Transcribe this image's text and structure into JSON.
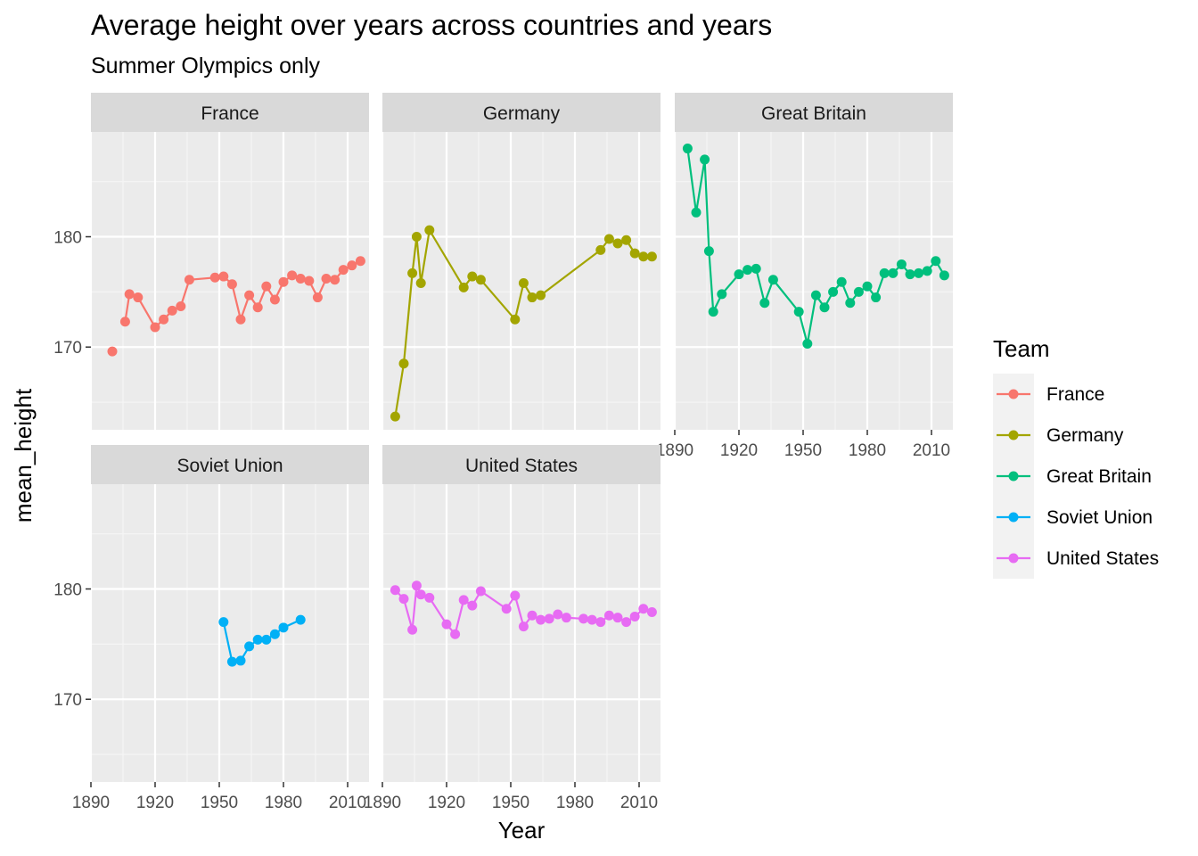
{
  "chart_data": {
    "type": "line",
    "title": "Average height over years across countries and years",
    "subtitle": "Summer Olympics only",
    "xlabel": "Year",
    "ylabel": "mean_height",
    "xlim": [
      1890,
      2020
    ],
    "ylim": [
      162.5,
      189.5
    ],
    "x_ticks": [
      1890,
      1920,
      1950,
      1980,
      2010
    ],
    "y_ticks": [
      170,
      180
    ],
    "grid": true,
    "legend": {
      "title": "Team",
      "position": "right"
    },
    "series": [
      {
        "name": "France",
        "color": "#F8766D",
        "x": [
          1900,
          1906,
          1908,
          1912,
          1920,
          1924,
          1928,
          1932,
          1936,
          1948,
          1952,
          1956,
          1960,
          1964,
          1968,
          1972,
          1976,
          1980,
          1984,
          1988,
          1992,
          1996,
          2000,
          2004,
          2008,
          2012,
          2016
        ],
        "y": [
          169.6,
          172.3,
          174.8,
          174.5,
          171.8,
          172.5,
          173.3,
          173.7,
          176.1,
          176.3,
          176.4,
          175.7,
          172.5,
          174.7,
          173.6,
          175.5,
          174.3,
          175.9,
          176.5,
          176.2,
          176.0,
          174.5,
          176.2,
          176.1,
          177.0,
          177.4,
          177.8
        ],
        "connected_from_index": 1
      },
      {
        "name": "Germany",
        "color": "#A3A500",
        "x": [
          1896,
          1900,
          1904,
          1906,
          1908,
          1912,
          1928,
          1932,
          1936,
          1952,
          1956,
          1960,
          1964,
          1992,
          1996,
          2000,
          2004,
          2008,
          2012,
          2016
        ],
        "y": [
          163.7,
          168.5,
          176.7,
          180.0,
          175.8,
          180.6,
          175.4,
          176.4,
          176.1,
          172.5,
          175.8,
          174.5,
          174.7,
          178.8,
          179.8,
          179.4,
          179.7,
          178.5,
          178.2,
          178.2
        ]
      },
      {
        "name": "Great Britain",
        "color": "#00BF7D",
        "x": [
          1896,
          1900,
          1904,
          1906,
          1908,
          1912,
          1920,
          1924,
          1928,
          1932,
          1936,
          1948,
          1952,
          1956,
          1960,
          1964,
          1968,
          1972,
          1976,
          1980,
          1984,
          1988,
          1992,
          1996,
          2000,
          2004,
          2008,
          2012,
          2016
        ],
        "y": [
          188.0,
          182.2,
          187.0,
          178.7,
          173.2,
          174.8,
          176.6,
          177.0,
          177.1,
          174.0,
          176.1,
          173.2,
          170.3,
          174.7,
          173.6,
          175.0,
          175.9,
          174.0,
          175.0,
          175.5,
          174.5,
          176.7,
          176.7,
          177.5,
          176.6,
          176.7,
          176.9,
          177.8,
          176.5
        ]
      },
      {
        "name": "Soviet Union",
        "color": "#00B0F6",
        "x": [
          1952,
          1956,
          1960,
          1964,
          1968,
          1972,
          1976,
          1980,
          1988
        ],
        "y": [
          177.0,
          173.4,
          173.5,
          174.8,
          175.4,
          175.4,
          175.9,
          176.5,
          177.2
        ]
      },
      {
        "name": "United States",
        "color": "#E76BF3",
        "x": [
          1896,
          1900,
          1904,
          1906,
          1908,
          1912,
          1920,
          1924,
          1928,
          1932,
          1936,
          1948,
          1952,
          1956,
          1960,
          1964,
          1968,
          1972,
          1976,
          1984,
          1988,
          1992,
          1996,
          2000,
          2004,
          2008,
          2012,
          2016
        ],
        "y": [
          179.9,
          179.1,
          176.3,
          180.3,
          179.5,
          179.2,
          176.8,
          175.9,
          179.0,
          178.5,
          179.8,
          178.2,
          179.4,
          176.6,
          177.6,
          177.2,
          177.3,
          177.7,
          177.4,
          177.3,
          177.2,
          177.0,
          177.6,
          177.4,
          177.0,
          177.5,
          178.2,
          177.9
        ]
      }
    ]
  }
}
